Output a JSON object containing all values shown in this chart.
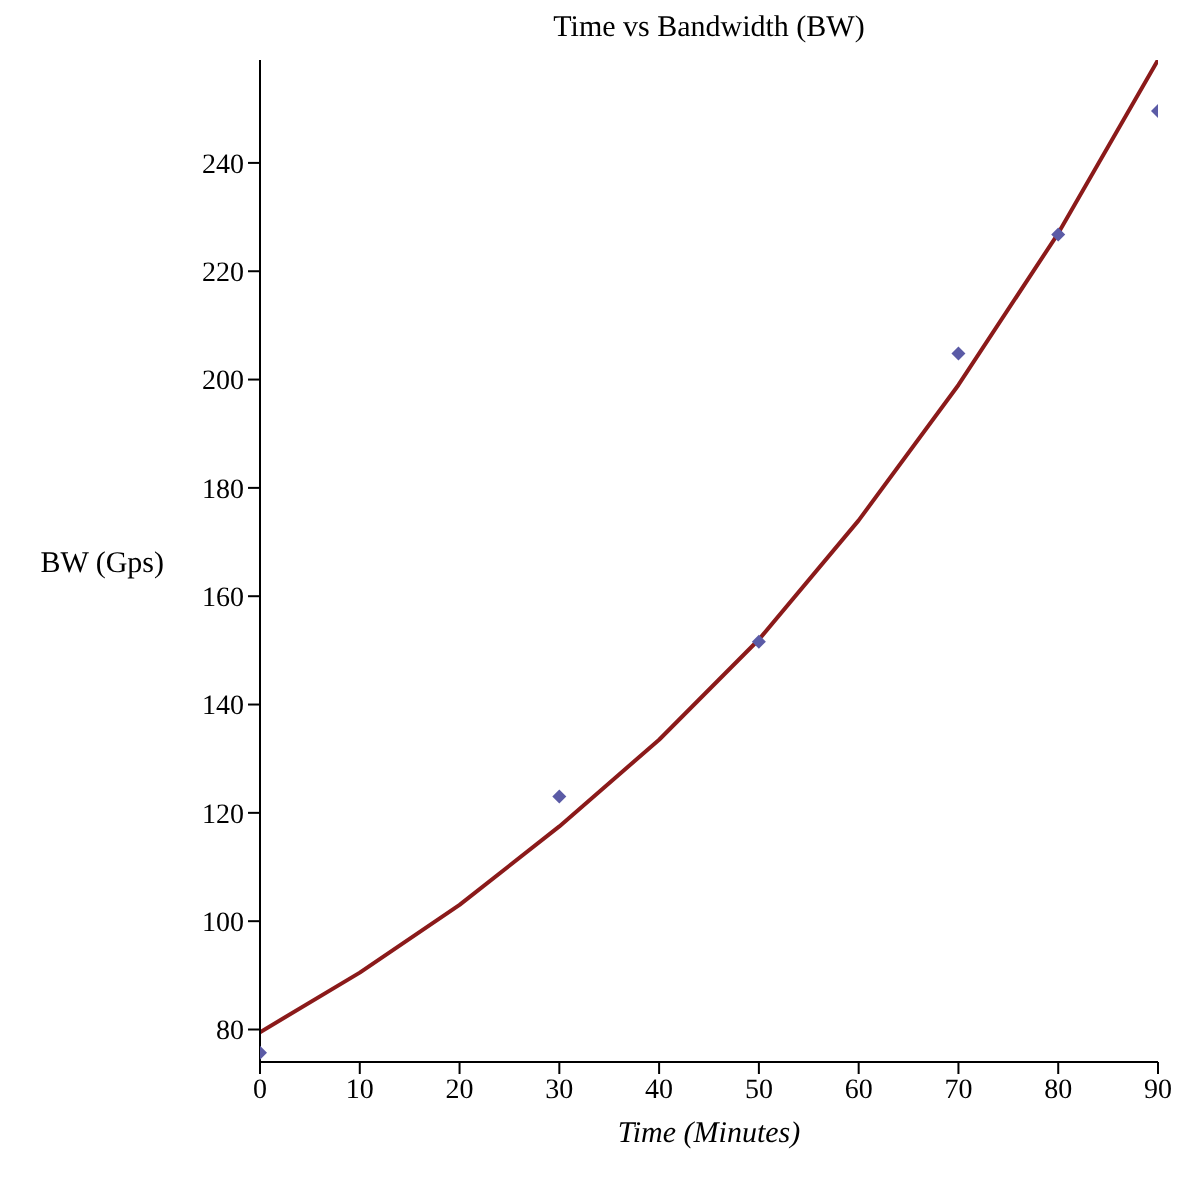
{
  "chart_data": {
    "type": "scatter",
    "title": "Time vs Bandwidth (BW)",
    "xlabel": "Time (Minutes)",
    "ylabel": "BW (Gps)",
    "xlim": [
      0,
      90
    ],
    "xticks": [
      0,
      10,
      20,
      30,
      40,
      50,
      60,
      70,
      80,
      90
    ],
    "ylim": [
      74,
      259
    ],
    "yticks": [
      80,
      100,
      120,
      140,
      160,
      180,
      200,
      220,
      240
    ],
    "grid": false,
    "legend": false,
    "series": [
      {
        "color": "#5b5ba6",
        "marker": "diamond",
        "x": [
          0,
          30,
          50,
          70,
          80,
          90
        ],
        "values": [
          75.7,
          123,
          151.6,
          204.8,
          226.8,
          249.6
        ]
      },
      {
        "type": "line",
        "color": "#8b1a1a",
        "marker": "none",
        "line_style": "solid",
        "x": [
          0,
          10,
          20,
          30,
          40,
          50,
          60,
          70,
          80,
          90
        ],
        "values": [
          79.5,
          90.5,
          103,
          117.5,
          133.5,
          152,
          174,
          199,
          227,
          259
        ]
      }
    ]
  }
}
